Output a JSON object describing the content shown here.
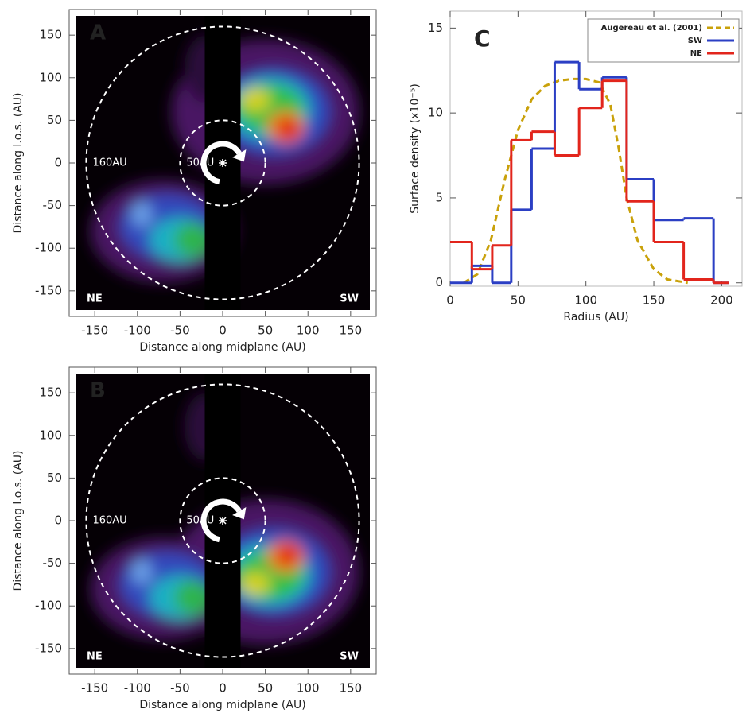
{
  "chart_data": [
    {
      "type": "image",
      "panel_label": "A",
      "xlabel": "Distance along midplane (AU)",
      "ylabel": "Distance along l.o.s. (AU)",
      "xlim": [
        -180,
        180
      ],
      "ylim": [
        -180,
        180
      ],
      "xticks": [
        -150,
        -100,
        -50,
        0,
        50,
        100,
        150
      ],
      "yticks": [
        -150,
        -100,
        -50,
        0,
        50,
        100,
        150
      ],
      "rings": [
        {
          "value": 160,
          "label": "160AU"
        },
        {
          "value": 50,
          "label": "50AU"
        }
      ],
      "corner_labels": [
        "NE",
        "SW"
      ]
    },
    {
      "type": "image",
      "panel_label": "B",
      "xlabel": "Distance along midplane (AU)",
      "ylabel": "Distance along l.o.s. (AU)",
      "xlim": [
        -180,
        180
      ],
      "ylim": [
        -180,
        180
      ],
      "xticks": [
        -150,
        -100,
        -50,
        0,
        50,
        100,
        150
      ],
      "yticks": [
        -150,
        -100,
        -50,
        0,
        50,
        100,
        150
      ],
      "rings": [
        {
          "value": 160,
          "label": "160AU"
        },
        {
          "value": 50,
          "label": "50AU"
        }
      ],
      "corner_labels": [
        "NE",
        "SW"
      ]
    },
    {
      "type": "step",
      "panel_label": "C",
      "xlabel": "Radius (AU)",
      "ylabel": "Surface density (x10⁻⁵)",
      "xlim": [
        0,
        215
      ],
      "ylim": [
        -0.2,
        16
      ],
      "xticks": [
        0,
        50,
        100,
        150,
        200
      ],
      "yticks": [
        0,
        5,
        10,
        15
      ],
      "legend": "upper right",
      "series": [
        {
          "name": "Augereau et al. (2001)",
          "color": "#c9a10a",
          "dashed": true,
          "x": [
            10,
            20,
            30,
            40,
            50,
            60,
            70,
            80,
            90,
            100,
            110,
            118,
            124,
            130,
            138,
            150,
            160,
            175
          ],
          "values": [
            0,
            0.5,
            2.5,
            6,
            9,
            10.8,
            11.6,
            11.9,
            12,
            12,
            11.8,
            10.5,
            8,
            5,
            2.5,
            0.8,
            0.2,
            0
          ]
        },
        {
          "name": "SW",
          "color": "#2b3fc4",
          "bins": [
            0,
            16,
            31,
            45,
            60,
            77,
            95,
            112,
            130,
            150,
            172,
            194,
            205
          ],
          "values": [
            0,
            1.0,
            0,
            4.3,
            7.9,
            13.0,
            11.4,
            12.1,
            6.1,
            3.7,
            3.8,
            0
          ]
        },
        {
          "name": "NE",
          "color": "#e2251c",
          "bins": [
            0,
            16,
            31,
            45,
            60,
            77,
            95,
            112,
            130,
            150,
            172,
            194,
            205
          ],
          "values": [
            2.4,
            0.8,
            2.2,
            8.4,
            8.9,
            7.5,
            10.3,
            11.9,
            4.8,
            2.4,
            0.2,
            0
          ]
        }
      ]
    }
  ]
}
